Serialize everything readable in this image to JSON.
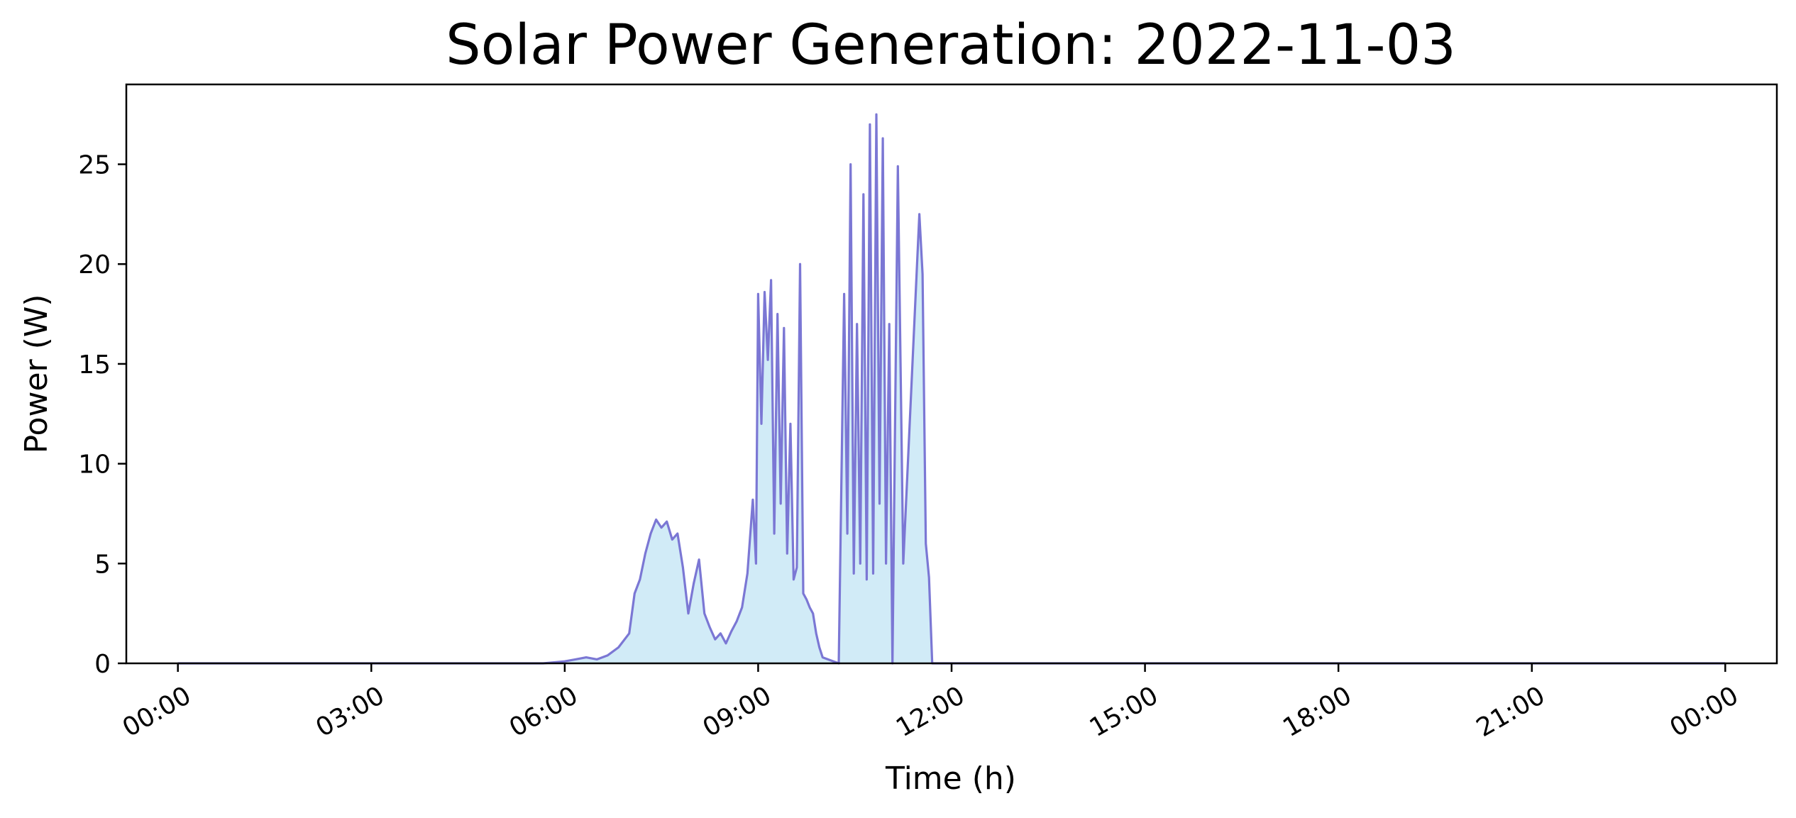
{
  "chart_data": {
    "type": "area",
    "title": "Solar Power Generation: 2022-11-03",
    "xlabel": "Time (h)",
    "ylabel": "Power (W)",
    "xlim": [
      "2022-11-02 23:12",
      "2022-11-04 00:48"
    ],
    "ylim": [
      0,
      29
    ],
    "x_tick_values": [
      "2022-11-03 00:00",
      "2022-11-03 03:00",
      "2022-11-03 06:00",
      "2022-11-03 09:00",
      "2022-11-03 12:00",
      "2022-11-03 15:00",
      "2022-11-03 18:00",
      "2022-11-03 21:00",
      "2022-11-04 00:00"
    ],
    "x_tick_labels": [
      "00:00",
      "03:00",
      "06:00",
      "09:00",
      "12:00",
      "15:00",
      "18:00",
      "21:00",
      "00:00"
    ],
    "y_ticks": [
      0,
      5,
      10,
      15,
      20,
      25
    ],
    "grid": false,
    "colors": {
      "line": "#7b77d4",
      "fill": "#d1ebf7"
    },
    "series": [
      {
        "x": [
          "00:00",
          "05:40",
          "06:00",
          "06:10",
          "06:20",
          "06:30",
          "06:40",
          "06:50",
          "07:00",
          "07:05",
          "07:10",
          "07:15",
          "07:20",
          "07:25",
          "07:30",
          "07:35",
          "07:40",
          "07:45",
          "07:50",
          "07:55",
          "08:00",
          "08:05",
          "08:10",
          "08:15",
          "08:20",
          "08:25",
          "08:30",
          "08:35",
          "08:40",
          "08:45",
          "08:50",
          "08:55",
          "08:58",
          "09:00",
          "09:03",
          "09:06",
          "09:09",
          "09:12",
          "09:15",
          "09:18",
          "09:21",
          "09:24",
          "09:27",
          "09:30",
          "09:33",
          "09:36",
          "09:39",
          "09:42",
          "09:45",
          "09:48",
          "09:51",
          "09:54",
          "09:57",
          "10:00",
          "10:15",
          "10:20",
          "10:23",
          "10:26",
          "10:29",
          "10:32",
          "10:35",
          "10:38",
          "10:41",
          "10:44",
          "10:47",
          "10:50",
          "10:53",
          "10:56",
          "10:59",
          "11:02",
          "11:05",
          "11:10",
          "11:15",
          "11:30",
          "11:33",
          "11:36",
          "11:39",
          "11:42",
          "11:45",
          "11:47",
          "11:48",
          "12:00",
          "15:00",
          "18:00",
          "21:00",
          "24:00"
        ],
        "y": [
          0,
          0,
          0.1,
          0.2,
          0.3,
          0.2,
          0.4,
          0.8,
          1.5,
          3.5,
          4.2,
          5.5,
          6.5,
          7.2,
          6.8,
          7.1,
          6.2,
          6.5,
          4.8,
          2.5,
          4.0,
          5.2,
          2.5,
          1.8,
          1.2,
          1.5,
          1.0,
          1.6,
          2.1,
          2.8,
          4.5,
          8.2,
          5.0,
          18.5,
          12.0,
          18.6,
          15.2,
          19.2,
          6.5,
          17.5,
          8.0,
          16.8,
          5.5,
          12.0,
          4.2,
          4.8,
          20.0,
          3.5,
          3.2,
          2.8,
          2.5,
          1.5,
          0.8,
          0.3,
          0,
          18.5,
          6.5,
          25.0,
          4.5,
          17.0,
          5.0,
          23.5,
          4.2,
          27.0,
          4.5,
          27.5,
          8.0,
          26.3,
          5.0,
          17.0,
          0,
          24.9,
          5.0,
          22.5,
          19.5,
          6.0,
          4.3,
          0,
          0,
          0,
          0,
          0,
          0,
          0,
          0,
          0
        ]
      }
    ]
  }
}
